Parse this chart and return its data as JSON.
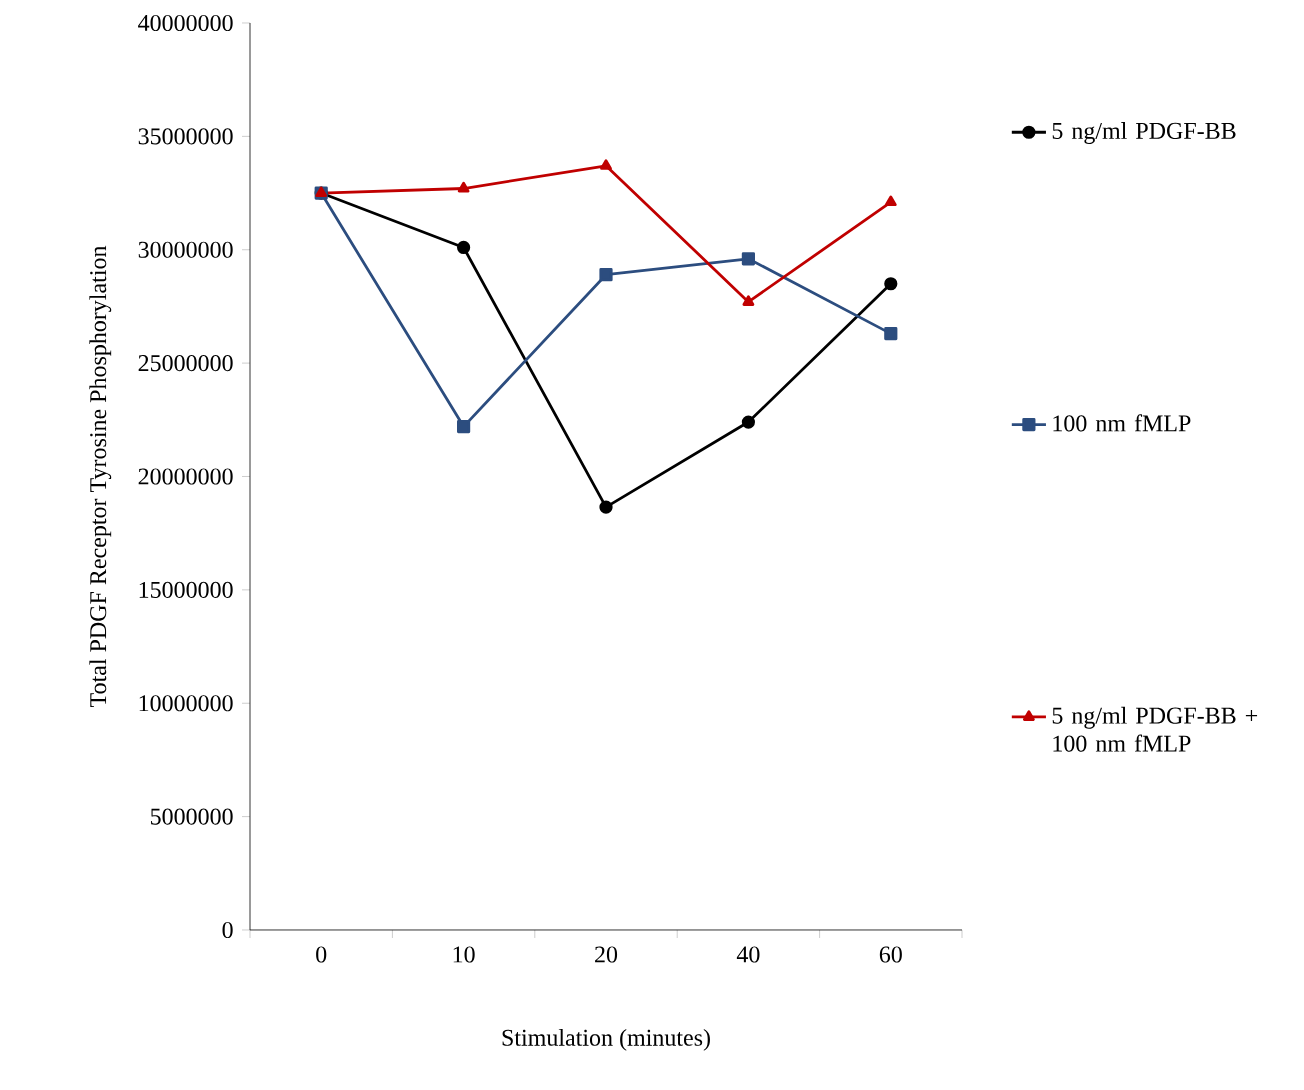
{
  "chart_data": {
    "type": "line",
    "xlabel": "Stimulation (minutes)",
    "ylabel": "Total PDGF Receptor Tyrosine Phosphorylation",
    "categories": [
      "0",
      "10",
      "20",
      "40",
      "60"
    ],
    "series": [
      {
        "name": "5 ng/ml PDGF-BB",
        "color": "#000000",
        "marker": "circle",
        "values": [
          32500000,
          30100000,
          18650000,
          22400000,
          28500000
        ]
      },
      {
        "name": "100 nm fMLP",
        "color": "#2c4d7f",
        "marker": "square",
        "values": [
          32500000,
          22200000,
          28900000,
          29600000,
          26300000
        ]
      },
      {
        "name": "5 ng/ml PDGF-BB + 100 nm fMLP",
        "color": "#c00000",
        "marker": "triangle",
        "values": [
          32500000,
          32700000,
          33700000,
          27700000,
          32100000
        ]
      }
    ],
    "ylim": [
      0,
      40000000
    ],
    "yticks": [
      0,
      5000000,
      10000000,
      15000000,
      20000000,
      25000000,
      30000000,
      35000000,
      40000000
    ],
    "grid": false,
    "legend": "right"
  }
}
